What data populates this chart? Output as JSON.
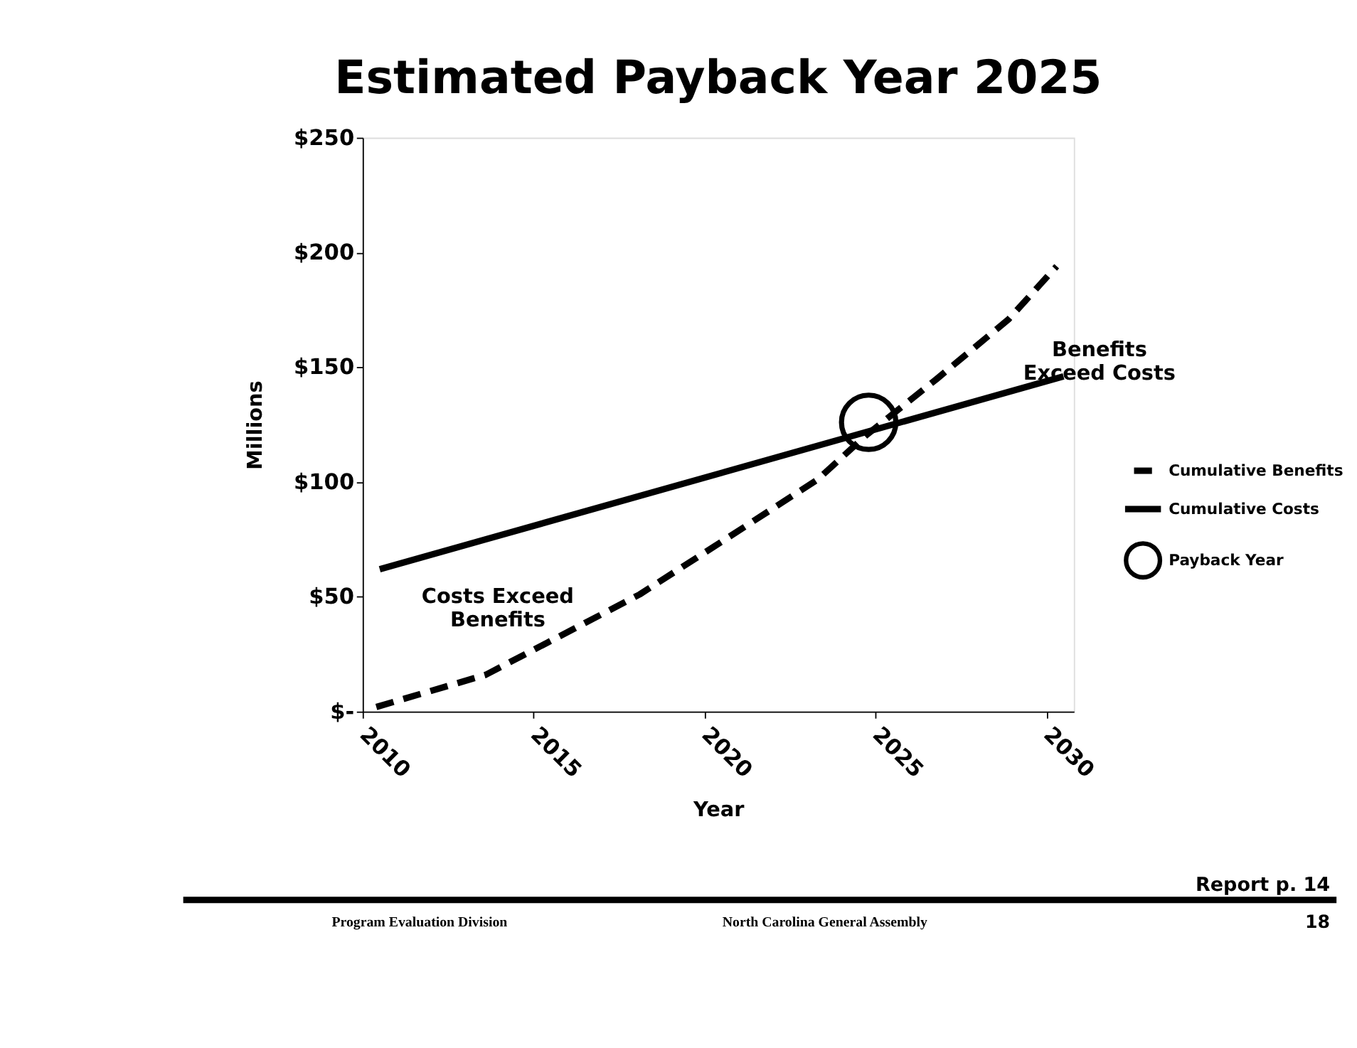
{
  "chart_data": {
    "type": "line",
    "title": "Estimated Payback Year 2025",
    "xlabel": "Year",
    "ylabel": "Millions",
    "xlim": [
      2010,
      2030.8
    ],
    "xticks": [
      2010,
      2015,
      2020,
      2025,
      2030
    ],
    "ylim": [
      0,
      250
    ],
    "yticks": [
      {
        "value": 0,
        "label": "$-"
      },
      {
        "value": 50,
        "label": "$50"
      },
      {
        "value": 100,
        "label": "$100"
      },
      {
        "value": 150,
        "label": "$150"
      },
      {
        "value": 200,
        "label": "$200"
      },
      {
        "value": 250,
        "label": "$250"
      }
    ],
    "grid": false,
    "legend": "right",
    "series": [
      {
        "name": "Cumulative Benefits",
        "type": "line",
        "line_style": "dashed",
        "color": "#000000",
        "x": [
          2010.4,
          2013.6,
          2015.4,
          2018.1,
          2020.5,
          2023.3,
          2024.7,
          2026.8,
          2028.9,
          2030.3
        ],
        "values": [
          2,
          16,
          30,
          51,
          74,
          101,
          120,
          145,
          171,
          194
        ]
      },
      {
        "name": "Cumulative Costs",
        "type": "line",
        "line_style": "solid",
        "color": "#000000",
        "x": [
          2010.5,
          2030.5
        ],
        "values": [
          62,
          146
        ]
      },
      {
        "name": "Payback Year",
        "type": "scatter",
        "marker": "circle",
        "color": "#000000",
        "x": [
          2024.8
        ],
        "values": [
          126
        ]
      }
    ],
    "annotations": [
      "Costs Exceed\nBenefits",
      "Benefits\nExceed Costs",
      "Report p. 14",
      "Program Evaluation Division",
      "North Carolina General Assembly",
      "18"
    ]
  }
}
